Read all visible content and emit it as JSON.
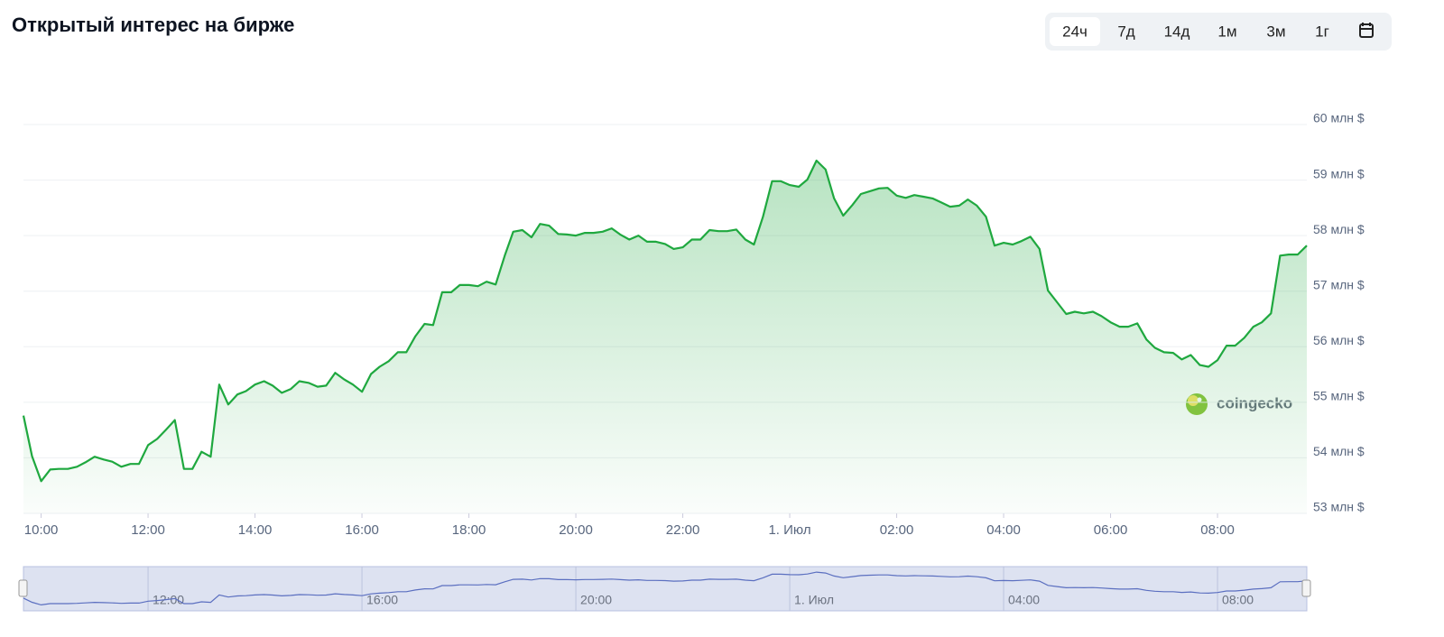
{
  "chart_data": {
    "type": "area",
    "title": "Открытый интерес на бирже",
    "controls": [
      "24ч",
      "7д",
      "14д",
      "1м",
      "3м",
      "1г"
    ],
    "active_control": 0,
    "watermark": "coingecko",
    "color": "#1fa83f",
    "grid": true,
    "x": [
      9.67,
      9.83,
      10,
      10.17,
      10.33,
      10.5,
      10.67,
      10.83,
      11,
      11.17,
      11.33,
      11.5,
      11.67,
      11.83,
      12,
      12.17,
      12.33,
      12.5,
      12.67,
      12.83,
      13,
      13.17,
      13.33,
      13.5,
      13.67,
      13.83,
      14,
      14.17,
      14.33,
      14.5,
      14.67,
      14.83,
      15,
      15.17,
      15.33,
      15.5,
      15.67,
      15.83,
      16,
      16.17,
      16.33,
      16.5,
      16.67,
      16.83,
      17,
      17.17,
      17.33,
      17.5,
      17.67,
      17.83,
      18,
      18.17,
      18.33,
      18.5,
      18.67,
      18.83,
      19,
      19.17,
      19.33,
      19.5,
      19.67,
      19.83,
      20,
      20.17,
      20.33,
      20.5,
      20.67,
      20.83,
      21,
      21.17,
      21.33,
      21.5,
      21.67,
      21.83,
      22,
      22.17,
      22.33,
      22.5,
      22.67,
      22.83,
      23,
      23.17,
      23.33,
      23.5,
      23.67,
      23.83,
      24,
      24.17,
      24.33,
      24.5,
      24.67,
      24.83,
      25,
      25.17,
      25.33,
      25.5,
      25.67,
      25.83,
      26,
      26.17,
      26.33,
      26.5,
      26.67,
      26.83,
      27,
      27.17,
      27.33,
      27.5,
      27.67,
      27.83,
      28,
      28.17,
      28.33,
      28.5,
      28.67,
      28.83,
      29,
      29.17,
      29.33,
      29.5,
      29.67,
      29.83,
      30,
      30.17,
      30.33,
      30.5,
      30.67,
      30.83,
      31,
      31.17,
      31.33,
      31.5,
      31.67,
      31.83,
      32,
      32.17,
      32.33,
      32.5,
      32.67,
      32.83,
      33,
      33.17,
      33.33,
      33.5,
      33.67
    ],
    "values": [
      54.76,
      54.03,
      53.58,
      53.79,
      53.8,
      53.8,
      53.84,
      53.92,
      54.02,
      53.97,
      53.93,
      53.84,
      53.89,
      53.89,
      54.23,
      54.34,
      54.5,
      54.68,
      53.8,
      53.8,
      54.11,
      54.02,
      55.32,
      54.96,
      55.14,
      55.2,
      55.32,
      55.38,
      55.3,
      55.17,
      55.24,
      55.38,
      55.35,
      55.28,
      55.3,
      55.53,
      55.41,
      55.32,
      55.19,
      55.51,
      55.64,
      55.74,
      55.9,
      55.9,
      56.19,
      56.41,
      56.39,
      56.98,
      56.98,
      57.11,
      57.11,
      57.09,
      57.17,
      57.12,
      57.64,
      58.07,
      58.1,
      57.97,
      58.21,
      58.18,
      58.03,
      58.02,
      58.0,
      58.05,
      58.05,
      58.07,
      58.13,
      58.02,
      57.93,
      58.0,
      57.89,
      57.89,
      57.85,
      57.76,
      57.79,
      57.93,
      57.93,
      58.1,
      58.08,
      58.08,
      58.11,
      57.93,
      57.84,
      58.34,
      58.98,
      58.98,
      58.91,
      58.88,
      59.01,
      59.35,
      59.19,
      58.67,
      58.36,
      58.55,
      58.75,
      58.8,
      58.85,
      58.86,
      58.72,
      58.68,
      58.73,
      58.7,
      58.67,
      58.6,
      58.52,
      58.54,
      58.65,
      58.54,
      58.34,
      57.82,
      57.87,
      57.84,
      57.9,
      57.98,
      57.76,
      57.01,
      56.8,
      56.59,
      56.63,
      56.6,
      56.63,
      56.55,
      56.44,
      56.36,
      56.36,
      56.42,
      56.13,
      55.98,
      55.9,
      55.89,
      55.77,
      55.85,
      55.67,
      55.64,
      55.76,
      56.02,
      56.02,
      56.16,
      56.36,
      56.44,
      56.6,
      57.64,
      57.66,
      57.66,
      57.82
    ],
    "xlim": [
      9.67,
      33.67
    ],
    "xticks": [
      {
        "value": 10,
        "label": "10:00"
      },
      {
        "value": 12,
        "label": "12:00"
      },
      {
        "value": 14,
        "label": "14:00"
      },
      {
        "value": 16,
        "label": "16:00"
      },
      {
        "value": 18,
        "label": "18:00"
      },
      {
        "value": 20,
        "label": "20:00"
      },
      {
        "value": 22,
        "label": "22:00"
      },
      {
        "value": 24,
        "label": "1. Июл"
      },
      {
        "value": 26,
        "label": "02:00"
      },
      {
        "value": 28,
        "label": "04:00"
      },
      {
        "value": 30,
        "label": "06:00"
      },
      {
        "value": 32,
        "label": "08:00"
      }
    ],
    "navigator_ticks": [
      1,
      3,
      5,
      7,
      9,
      11
    ],
    "ylim": [
      53,
      60
    ],
    "yticks": [
      {
        "value": 53,
        "label": "53 млн $"
      },
      {
        "value": 54,
        "label": "54 млн $"
      },
      {
        "value": 55,
        "label": "55 млн $"
      },
      {
        "value": 56,
        "label": "56 млн $"
      },
      {
        "value": 57,
        "label": "57 млн $"
      },
      {
        "value": 58,
        "label": "58 млн $"
      },
      {
        "value": 59,
        "label": "59 млн $"
      },
      {
        "value": 60,
        "label": "60 млн $"
      }
    ]
  }
}
